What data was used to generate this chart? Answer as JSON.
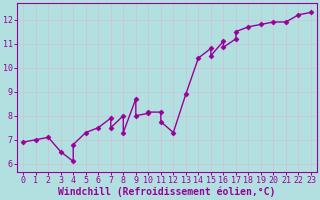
{
  "title": "",
  "xlabel": "Windchill (Refroidissement éolien,°C)",
  "ylabel": "",
  "bg_color": "#b2e0e0",
  "grid_color": "#c8c8d8",
  "line_color": "#990099",
  "x_data": [
    0,
    1,
    2,
    3,
    4,
    4,
    5,
    6,
    7,
    7,
    8,
    8,
    9,
    9,
    10,
    10,
    11,
    11,
    12,
    13,
    14,
    15,
    15,
    16,
    16,
    17,
    17,
    18,
    19,
    20,
    21,
    22,
    23
  ],
  "y_data": [
    6.9,
    7.0,
    7.1,
    6.5,
    6.1,
    6.8,
    7.3,
    7.5,
    7.9,
    7.5,
    8.0,
    7.3,
    8.7,
    8.0,
    8.1,
    8.15,
    8.15,
    7.75,
    7.3,
    8.9,
    10.4,
    10.8,
    10.5,
    11.1,
    10.85,
    11.2,
    11.5,
    11.7,
    11.8,
    11.9,
    11.9,
    12.2,
    12.3
  ],
  "xlim": [
    -0.5,
    23.5
  ],
  "ylim": [
    5.65,
    12.7
  ],
  "xticks": [
    0,
    1,
    2,
    3,
    4,
    5,
    6,
    7,
    8,
    9,
    10,
    11,
    12,
    13,
    14,
    15,
    16,
    17,
    18,
    19,
    20,
    21,
    22,
    23
  ],
  "yticks": [
    6,
    7,
    8,
    9,
    10,
    11,
    12
  ],
  "marker": "D",
  "markersize": 2.5,
  "linewidth": 1.0,
  "xlabel_fontsize": 7,
  "tick_fontsize": 6
}
